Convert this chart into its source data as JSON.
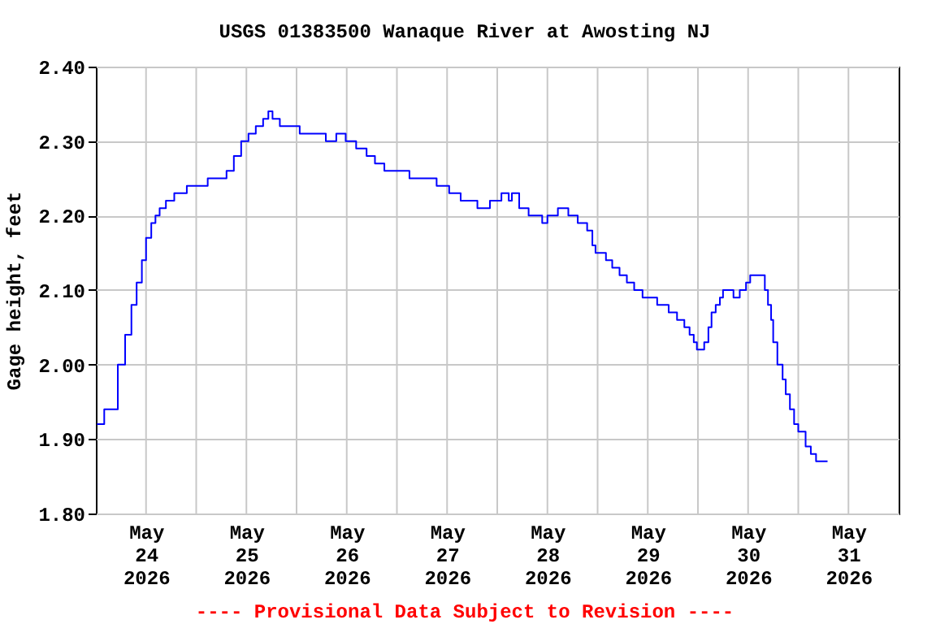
{
  "chart_data": {
    "type": "step",
    "title": "USGS 01383500 Wanaque River at Awosting NJ",
    "ylabel": "Gage height, feet",
    "annotations": [
      "---- Provisional Data Subject to Revision ----"
    ],
    "x": [
      "2026-05-24T00:15",
      "2026-05-24T02:00",
      "2026-05-24T05:15",
      "2026-05-24T07:00",
      "2026-05-24T08:30",
      "2026-05-24T09:45",
      "2026-05-24T11:00",
      "2026-05-24T12:00",
      "2026-05-24T13:15",
      "2026-05-24T14:15",
      "2026-05-24T15:15",
      "2026-05-24T16:45",
      "2026-05-24T18:45",
      "2026-05-24T21:45",
      "2026-05-25T02:45",
      "2026-05-25T07:15",
      "2026-05-25T09:00",
      "2026-05-25T10:45",
      "2026-05-25T12:30",
      "2026-05-25T14:15",
      "2026-05-25T16:00",
      "2026-05-25T17:15",
      "2026-05-25T18:15",
      "2026-05-25T20:00",
      "2026-05-26T00:45",
      "2026-05-26T07:00",
      "2026-05-26T09:30",
      "2026-05-26T11:45",
      "2026-05-26T14:15",
      "2026-05-26T16:45",
      "2026-05-26T18:45",
      "2026-05-26T21:00",
      "2026-05-27T03:00",
      "2026-05-27T09:30",
      "2026-05-27T12:30",
      "2026-05-27T15:15",
      "2026-05-27T19:15",
      "2026-05-27T22:15",
      "2026-05-28T01:00",
      "2026-05-28T02:45",
      "2026-05-28T03:30",
      "2026-05-28T05:15",
      "2026-05-28T07:30",
      "2026-05-28T10:45",
      "2026-05-28T12:00",
      "2026-05-28T14:30",
      "2026-05-28T17:00",
      "2026-05-28T19:15",
      "2026-05-28T21:30",
      "2026-05-28T22:45",
      "2026-05-28T23:30",
      "2026-05-29T02:00",
      "2026-05-29T03:30",
      "2026-05-29T05:15",
      "2026-05-29T07:00",
      "2026-05-29T08:45",
      "2026-05-29T10:45",
      "2026-05-29T14:15",
      "2026-05-29T17:00",
      "2026-05-29T19:00",
      "2026-05-29T20:45",
      "2026-05-29T22:00",
      "2026-05-29T23:00",
      "2026-05-29T23:45",
      "2026-05-30T01:30",
      "2026-05-30T02:30",
      "2026-05-30T03:15",
      "2026-05-30T04:15",
      "2026-05-30T05:15",
      "2026-05-30T06:00",
      "2026-05-30T08:30",
      "2026-05-30T10:00",
      "2026-05-30T11:30",
      "2026-05-30T12:30",
      "2026-05-30T16:00",
      "2026-05-30T16:45",
      "2026-05-30T17:30",
      "2026-05-30T18:00",
      "2026-05-30T19:00",
      "2026-05-30T20:15",
      "2026-05-30T21:00",
      "2026-05-30T22:00",
      "2026-05-30T23:00",
      "2026-05-31T00:00",
      "2026-05-31T01:45",
      "2026-05-31T03:00",
      "2026-05-31T04:15",
      "2026-05-31T07:00"
    ],
    "series": [
      {
        "color": "#0000ff",
        "values": [
          1.92,
          1.94,
          2.0,
          2.04,
          2.08,
          2.11,
          2.14,
          2.17,
          2.19,
          2.2,
          2.21,
          2.22,
          2.23,
          2.24,
          2.25,
          2.26,
          2.28,
          2.3,
          2.31,
          2.32,
          2.33,
          2.34,
          2.33,
          2.32,
          2.31,
          2.3,
          2.31,
          2.3,
          2.29,
          2.28,
          2.27,
          2.26,
          2.25,
          2.24,
          2.23,
          2.22,
          2.21,
          2.22,
          2.23,
          2.22,
          2.23,
          2.21,
          2.2,
          2.19,
          2.2,
          2.21,
          2.2,
          2.19,
          2.18,
          2.16,
          2.15,
          2.14,
          2.13,
          2.12,
          2.11,
          2.1,
          2.09,
          2.08,
          2.07,
          2.06,
          2.05,
          2.04,
          2.03,
          2.02,
          2.03,
          2.05,
          2.07,
          2.08,
          2.09,
          2.1,
          2.09,
          2.1,
          2.11,
          2.12,
          2.1,
          2.08,
          2.06,
          2.03,
          2.0,
          1.98,
          1.96,
          1.94,
          1.92,
          1.91,
          1.89,
          1.88,
          1.87,
          1.87
        ]
      }
    ],
    "xlim": [
      "2026-05-24T00:00",
      "2026-06-01T00:00"
    ],
    "xticks": [
      {
        "value": "2026-05-24T12:00",
        "label": "May 24 2026"
      },
      {
        "value": "2026-05-25T00:00",
        "label": null
      },
      {
        "value": "2026-05-25T12:00",
        "label": "May 25 2026"
      },
      {
        "value": "2026-05-26T00:00",
        "label": null
      },
      {
        "value": "2026-05-26T12:00",
        "label": "May 26 2026"
      },
      {
        "value": "2026-05-27T00:00",
        "label": null
      },
      {
        "value": "2026-05-27T12:00",
        "label": "May 27 2026"
      },
      {
        "value": "2026-05-28T00:00",
        "label": null
      },
      {
        "value": "2026-05-28T12:00",
        "label": "May 28 2026"
      },
      {
        "value": "2026-05-29T00:00",
        "label": null
      },
      {
        "value": "2026-05-29T12:00",
        "label": "May 29 2026"
      },
      {
        "value": "2026-05-30T00:00",
        "label": null
      },
      {
        "value": "2026-05-30T12:00",
        "label": "May 30 2026"
      },
      {
        "value": "2026-05-31T00:00",
        "label": null
      },
      {
        "value": "2026-05-31T12:00",
        "label": "May 31 2026"
      }
    ],
    "ylim": [
      1.8,
      2.4
    ],
    "yticks": [
      {
        "value": 1.8,
        "label": "1.80"
      },
      {
        "value": 1.9,
        "label": "1.90"
      },
      {
        "value": 2.0,
        "label": "2.00"
      },
      {
        "value": 2.1,
        "label": "2.10"
      },
      {
        "value": 2.2,
        "label": "2.20"
      },
      {
        "value": 2.3,
        "label": "2.30"
      },
      {
        "value": 2.4,
        "label": "2.40"
      }
    ],
    "grid": true
  }
}
